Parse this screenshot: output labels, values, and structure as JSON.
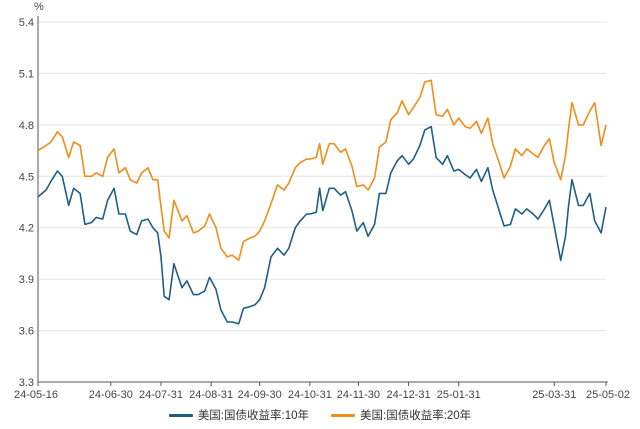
{
  "chart_data": {
    "type": "line",
    "unit": "%",
    "ylim": [
      3.3,
      5.4
    ],
    "yticks": [
      "3.3",
      "3.6",
      "3.9",
      "4.2",
      "4.5",
      "4.8",
      "5.1",
      "5.4"
    ],
    "xticks": [
      "24-05-16",
      "24-06-30",
      "24-07-31",
      "24-08-31",
      "24-09-30",
      "24-10-31",
      "24-11-30",
      "24-12-31",
      "25-01-31",
      "25-03-31",
      "25-05-02"
    ],
    "grid": "horizontal",
    "legend_position": "bottom",
    "series": [
      {
        "name": "美国:国债收益率:10年",
        "color": "#1f5f87",
        "points": [
          [
            "24-05-16",
            4.38
          ],
          [
            "24-05-21",
            4.42
          ],
          [
            "24-05-24",
            4.47
          ],
          [
            "24-05-28",
            4.53
          ],
          [
            "24-05-31",
            4.5
          ],
          [
            "24-06-04",
            4.33
          ],
          [
            "24-06-07",
            4.43
          ],
          [
            "24-06-11",
            4.4
          ],
          [
            "24-06-14",
            4.22
          ],
          [
            "24-06-18",
            4.23
          ],
          [
            "24-06-21",
            4.26
          ],
          [
            "24-06-25",
            4.25
          ],
          [
            "24-06-28",
            4.36
          ],
          [
            "24-07-02",
            4.43
          ],
          [
            "24-07-05",
            4.28
          ],
          [
            "24-07-09",
            4.28
          ],
          [
            "24-07-12",
            4.18
          ],
          [
            "24-07-16",
            4.16
          ],
          [
            "24-07-19",
            4.24
          ],
          [
            "24-07-23",
            4.25
          ],
          [
            "24-07-26",
            4.2
          ],
          [
            "24-07-29",
            4.17
          ],
          [
            "24-07-31",
            4.03
          ],
          [
            "24-08-02",
            3.8
          ],
          [
            "24-08-05",
            3.78
          ],
          [
            "24-08-08",
            3.99
          ],
          [
            "24-08-13",
            3.85
          ],
          [
            "24-08-16",
            3.89
          ],
          [
            "24-08-20",
            3.81
          ],
          [
            "24-08-23",
            3.81
          ],
          [
            "24-08-27",
            3.83
          ],
          [
            "24-08-30",
            3.91
          ],
          [
            "24-09-03",
            3.84
          ],
          [
            "24-09-06",
            3.72
          ],
          [
            "24-09-10",
            3.65
          ],
          [
            "24-09-13",
            3.65
          ],
          [
            "24-09-17",
            3.64
          ],
          [
            "24-09-20",
            3.73
          ],
          [
            "24-09-24",
            3.74
          ],
          [
            "24-09-27",
            3.75
          ],
          [
            "24-09-30",
            3.78
          ],
          [
            "24-10-03",
            3.85
          ],
          [
            "24-10-07",
            4.03
          ],
          [
            "24-10-11",
            4.08
          ],
          [
            "24-10-15",
            4.04
          ],
          [
            "24-10-18",
            4.08
          ],
          [
            "24-10-22",
            4.2
          ],
          [
            "24-10-25",
            4.24
          ],
          [
            "24-10-29",
            4.28
          ],
          [
            "24-10-31",
            4.28
          ],
          [
            "24-11-04",
            4.29
          ],
          [
            "24-11-06",
            4.43
          ],
          [
            "24-11-08",
            4.3
          ],
          [
            "24-11-12",
            4.43
          ],
          [
            "24-11-15",
            4.43
          ],
          [
            "24-11-19",
            4.39
          ],
          [
            "24-11-22",
            4.41
          ],
          [
            "24-11-26",
            4.3
          ],
          [
            "24-11-29",
            4.18
          ],
          [
            "24-12-03",
            4.23
          ],
          [
            "24-12-06",
            4.15
          ],
          [
            "24-12-10",
            4.22
          ],
          [
            "24-12-13",
            4.4
          ],
          [
            "24-12-17",
            4.4
          ],
          [
            "24-12-20",
            4.52
          ],
          [
            "24-12-24",
            4.59
          ],
          [
            "24-12-27",
            4.62
          ],
          [
            "24-12-31",
            4.57
          ],
          [
            "25-01-03",
            4.6
          ],
          [
            "25-01-07",
            4.68
          ],
          [
            "25-01-10",
            4.77
          ],
          [
            "25-01-14",
            4.79
          ],
          [
            "25-01-17",
            4.61
          ],
          [
            "25-01-21",
            4.57
          ],
          [
            "25-01-24",
            4.62
          ],
          [
            "25-01-28",
            4.53
          ],
          [
            "25-01-31",
            4.54
          ],
          [
            "25-02-04",
            4.51
          ],
          [
            "25-02-07",
            4.49
          ],
          [
            "25-02-11",
            4.54
          ],
          [
            "25-02-14",
            4.47
          ],
          [
            "25-02-18",
            4.55
          ],
          [
            "25-02-21",
            4.42
          ],
          [
            "25-02-25",
            4.3
          ],
          [
            "25-02-28",
            4.21
          ],
          [
            "25-03-04",
            4.22
          ],
          [
            "25-03-07",
            4.31
          ],
          [
            "25-03-11",
            4.28
          ],
          [
            "25-03-14",
            4.31
          ],
          [
            "25-03-18",
            4.28
          ],
          [
            "25-03-21",
            4.25
          ],
          [
            "25-03-25",
            4.31
          ],
          [
            "25-03-28",
            4.36
          ],
          [
            "25-03-31",
            4.21
          ],
          [
            "25-04-04",
            4.01
          ],
          [
            "25-04-07",
            4.15
          ],
          [
            "25-04-09",
            4.34
          ],
          [
            "25-04-11",
            4.48
          ],
          [
            "25-04-15",
            4.33
          ],
          [
            "25-04-18",
            4.33
          ],
          [
            "25-04-22",
            4.4
          ],
          [
            "25-04-25",
            4.24
          ],
          [
            "25-04-29",
            4.17
          ],
          [
            "25-05-02",
            4.32
          ]
        ]
      },
      {
        "name": "美国:国债收益率:20年",
        "color": "#f28c1a",
        "points": [
          [
            "24-05-16",
            4.65
          ],
          [
            "24-05-21",
            4.68
          ],
          [
            "24-05-24",
            4.7
          ],
          [
            "24-05-28",
            4.76
          ],
          [
            "24-05-31",
            4.73
          ],
          [
            "24-06-04",
            4.61
          ],
          [
            "24-06-07",
            4.7
          ],
          [
            "24-06-11",
            4.68
          ],
          [
            "24-06-14",
            4.5
          ],
          [
            "24-06-18",
            4.5
          ],
          [
            "24-06-21",
            4.52
          ],
          [
            "24-06-25",
            4.5
          ],
          [
            "24-06-28",
            4.61
          ],
          [
            "24-07-02",
            4.66
          ],
          [
            "24-07-05",
            4.52
          ],
          [
            "24-07-09",
            4.55
          ],
          [
            "24-07-12",
            4.48
          ],
          [
            "24-07-16",
            4.46
          ],
          [
            "24-07-19",
            4.52
          ],
          [
            "24-07-23",
            4.55
          ],
          [
            "24-07-26",
            4.48
          ],
          [
            "24-07-29",
            4.48
          ],
          [
            "24-07-31",
            4.32
          ],
          [
            "24-08-02",
            4.18
          ],
          [
            "24-08-05",
            4.14
          ],
          [
            "24-08-08",
            4.36
          ],
          [
            "24-08-13",
            4.24
          ],
          [
            "24-08-16",
            4.27
          ],
          [
            "24-08-20",
            4.17
          ],
          [
            "24-08-23",
            4.18
          ],
          [
            "24-08-27",
            4.21
          ],
          [
            "24-08-30",
            4.28
          ],
          [
            "24-09-03",
            4.2
          ],
          [
            "24-09-06",
            4.08
          ],
          [
            "24-09-10",
            4.03
          ],
          [
            "24-09-13",
            4.04
          ],
          [
            "24-09-17",
            4.01
          ],
          [
            "24-09-20",
            4.12
          ],
          [
            "24-09-24",
            4.14
          ],
          [
            "24-09-27",
            4.15
          ],
          [
            "24-09-30",
            4.18
          ],
          [
            "24-10-03",
            4.24
          ],
          [
            "24-10-07",
            4.34
          ],
          [
            "24-10-11",
            4.45
          ],
          [
            "24-10-15",
            4.42
          ],
          [
            "24-10-18",
            4.46
          ],
          [
            "24-10-22",
            4.55
          ],
          [
            "24-10-25",
            4.58
          ],
          [
            "24-10-29",
            4.6
          ],
          [
            "24-10-31",
            4.6
          ],
          [
            "24-11-04",
            4.61
          ],
          [
            "24-11-06",
            4.69
          ],
          [
            "24-11-08",
            4.57
          ],
          [
            "24-11-12",
            4.69
          ],
          [
            "24-11-15",
            4.69
          ],
          [
            "24-11-19",
            4.64
          ],
          [
            "24-11-22",
            4.66
          ],
          [
            "24-11-26",
            4.56
          ],
          [
            "24-11-29",
            4.44
          ],
          [
            "24-12-03",
            4.45
          ],
          [
            "24-12-06",
            4.42
          ],
          [
            "24-12-10",
            4.49
          ],
          [
            "24-12-13",
            4.67
          ],
          [
            "24-12-17",
            4.7
          ],
          [
            "24-12-20",
            4.83
          ],
          [
            "24-12-24",
            4.87
          ],
          [
            "24-12-27",
            4.94
          ],
          [
            "24-12-31",
            4.86
          ],
          [
            "25-01-03",
            4.9
          ],
          [
            "25-01-07",
            4.96
          ],
          [
            "25-01-10",
            5.05
          ],
          [
            "25-01-14",
            5.06
          ],
          [
            "25-01-17",
            4.86
          ],
          [
            "25-01-21",
            4.85
          ],
          [
            "25-01-24",
            4.89
          ],
          [
            "25-01-28",
            4.8
          ],
          [
            "25-01-31",
            4.84
          ],
          [
            "25-02-04",
            4.79
          ],
          [
            "25-02-07",
            4.78
          ],
          [
            "25-02-11",
            4.82
          ],
          [
            "25-02-14",
            4.75
          ],
          [
            "25-02-18",
            4.84
          ],
          [
            "25-02-21",
            4.69
          ],
          [
            "25-02-25",
            4.58
          ],
          [
            "25-02-28",
            4.49
          ],
          [
            "25-03-04",
            4.56
          ],
          [
            "25-03-07",
            4.66
          ],
          [
            "25-03-11",
            4.62
          ],
          [
            "25-03-14",
            4.66
          ],
          [
            "25-03-18",
            4.63
          ],
          [
            "25-03-21",
            4.61
          ],
          [
            "25-03-25",
            4.68
          ],
          [
            "25-03-28",
            4.72
          ],
          [
            "25-03-31",
            4.58
          ],
          [
            "25-04-04",
            4.48
          ],
          [
            "25-04-07",
            4.62
          ],
          [
            "25-04-09",
            4.79
          ],
          [
            "25-04-11",
            4.93
          ],
          [
            "25-04-15",
            4.8
          ],
          [
            "25-04-18",
            4.8
          ],
          [
            "25-04-22",
            4.88
          ],
          [
            "25-04-25",
            4.93
          ],
          [
            "25-04-29",
            4.68
          ],
          [
            "25-05-02",
            4.8
          ]
        ]
      }
    ]
  }
}
